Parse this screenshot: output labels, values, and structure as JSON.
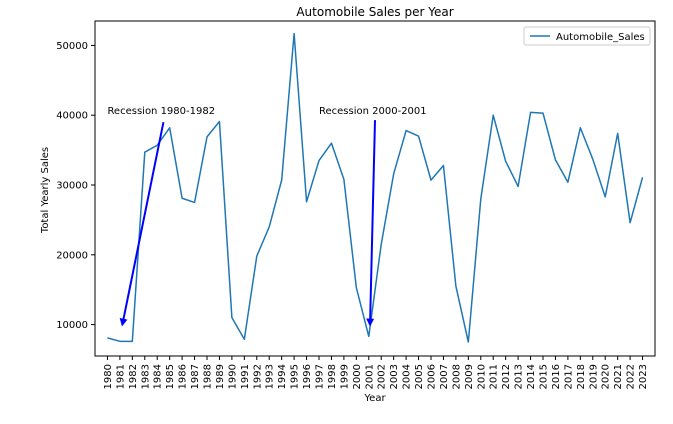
{
  "chart_data": {
    "type": "line",
    "title": "Automobile Sales per Year",
    "xlabel": "Year",
    "ylabel": "Total Yearly Sales",
    "ylim": [
      5500,
      53500
    ],
    "xlim": [
      1979,
      2024
    ],
    "grid": false,
    "legend_position": "top-right",
    "x_tick_labels": [
      "1980",
      "1981",
      "1982",
      "1983",
      "1984",
      "1985",
      "1986",
      "1987",
      "1988",
      "1989",
      "1990",
      "1991",
      "1992",
      "1993",
      "1994",
      "1995",
      "1996",
      "1997",
      "1998",
      "1999",
      "2000",
      "2001",
      "2002",
      "2003",
      "2004",
      "2005",
      "2006",
      "2007",
      "2008",
      "2009",
      "2010",
      "2011",
      "2012",
      "2013",
      "2014",
      "2015",
      "2016",
      "2017",
      "2018",
      "2019",
      "2020",
      "2021",
      "2022",
      "2023"
    ],
    "y_ticks": [
      10000,
      20000,
      30000,
      40000,
      50000
    ],
    "series": [
      {
        "name": "Automobile_Sales",
        "color": "#1f77b4",
        "x": [
          1980,
          1981,
          1982,
          1983,
          1984,
          1985,
          1986,
          1987,
          1988,
          1989,
          1990,
          1991,
          1992,
          1993,
          1994,
          1995,
          1996,
          1997,
          1998,
          1999,
          2000,
          2001,
          2002,
          2003,
          2004,
          2005,
          2006,
          2007,
          2008,
          2009,
          2010,
          2011,
          2012,
          2013,
          2014,
          2015,
          2016,
          2017,
          2018,
          2019,
          2020,
          2021,
          2022,
          2023
        ],
        "values": [
          8100,
          7600,
          7600,
          34700,
          35700,
          38200,
          28100,
          27500,
          36900,
          39100,
          11000,
          7900,
          19800,
          24000,
          30700,
          51700,
          27600,
          33500,
          36000,
          30800,
          15300,
          8300,
          21500,
          31600,
          37800,
          37000,
          30700,
          32800,
          15500,
          7500,
          28000,
          40000,
          33400,
          29800,
          40400,
          40300,
          33600,
          30400,
          38200,
          33700,
          28300,
          37400,
          24600,
          31100
        ]
      }
    ],
    "annotations": [
      {
        "text": "Recession 1980-1982",
        "text_x": 1980,
        "text_y": 40000,
        "arrow_from": [
          1984.5,
          39000
        ],
        "arrow_to": [
          1981.2,
          10000
        ],
        "color": "#0000ff"
      },
      {
        "text": "Recession 2000-2001",
        "text_x": 1997,
        "text_y": 40000,
        "arrow_from": [
          2001.5,
          39300
        ],
        "arrow_to": [
          2001.1,
          10000
        ],
        "color": "#0000ff"
      }
    ]
  }
}
